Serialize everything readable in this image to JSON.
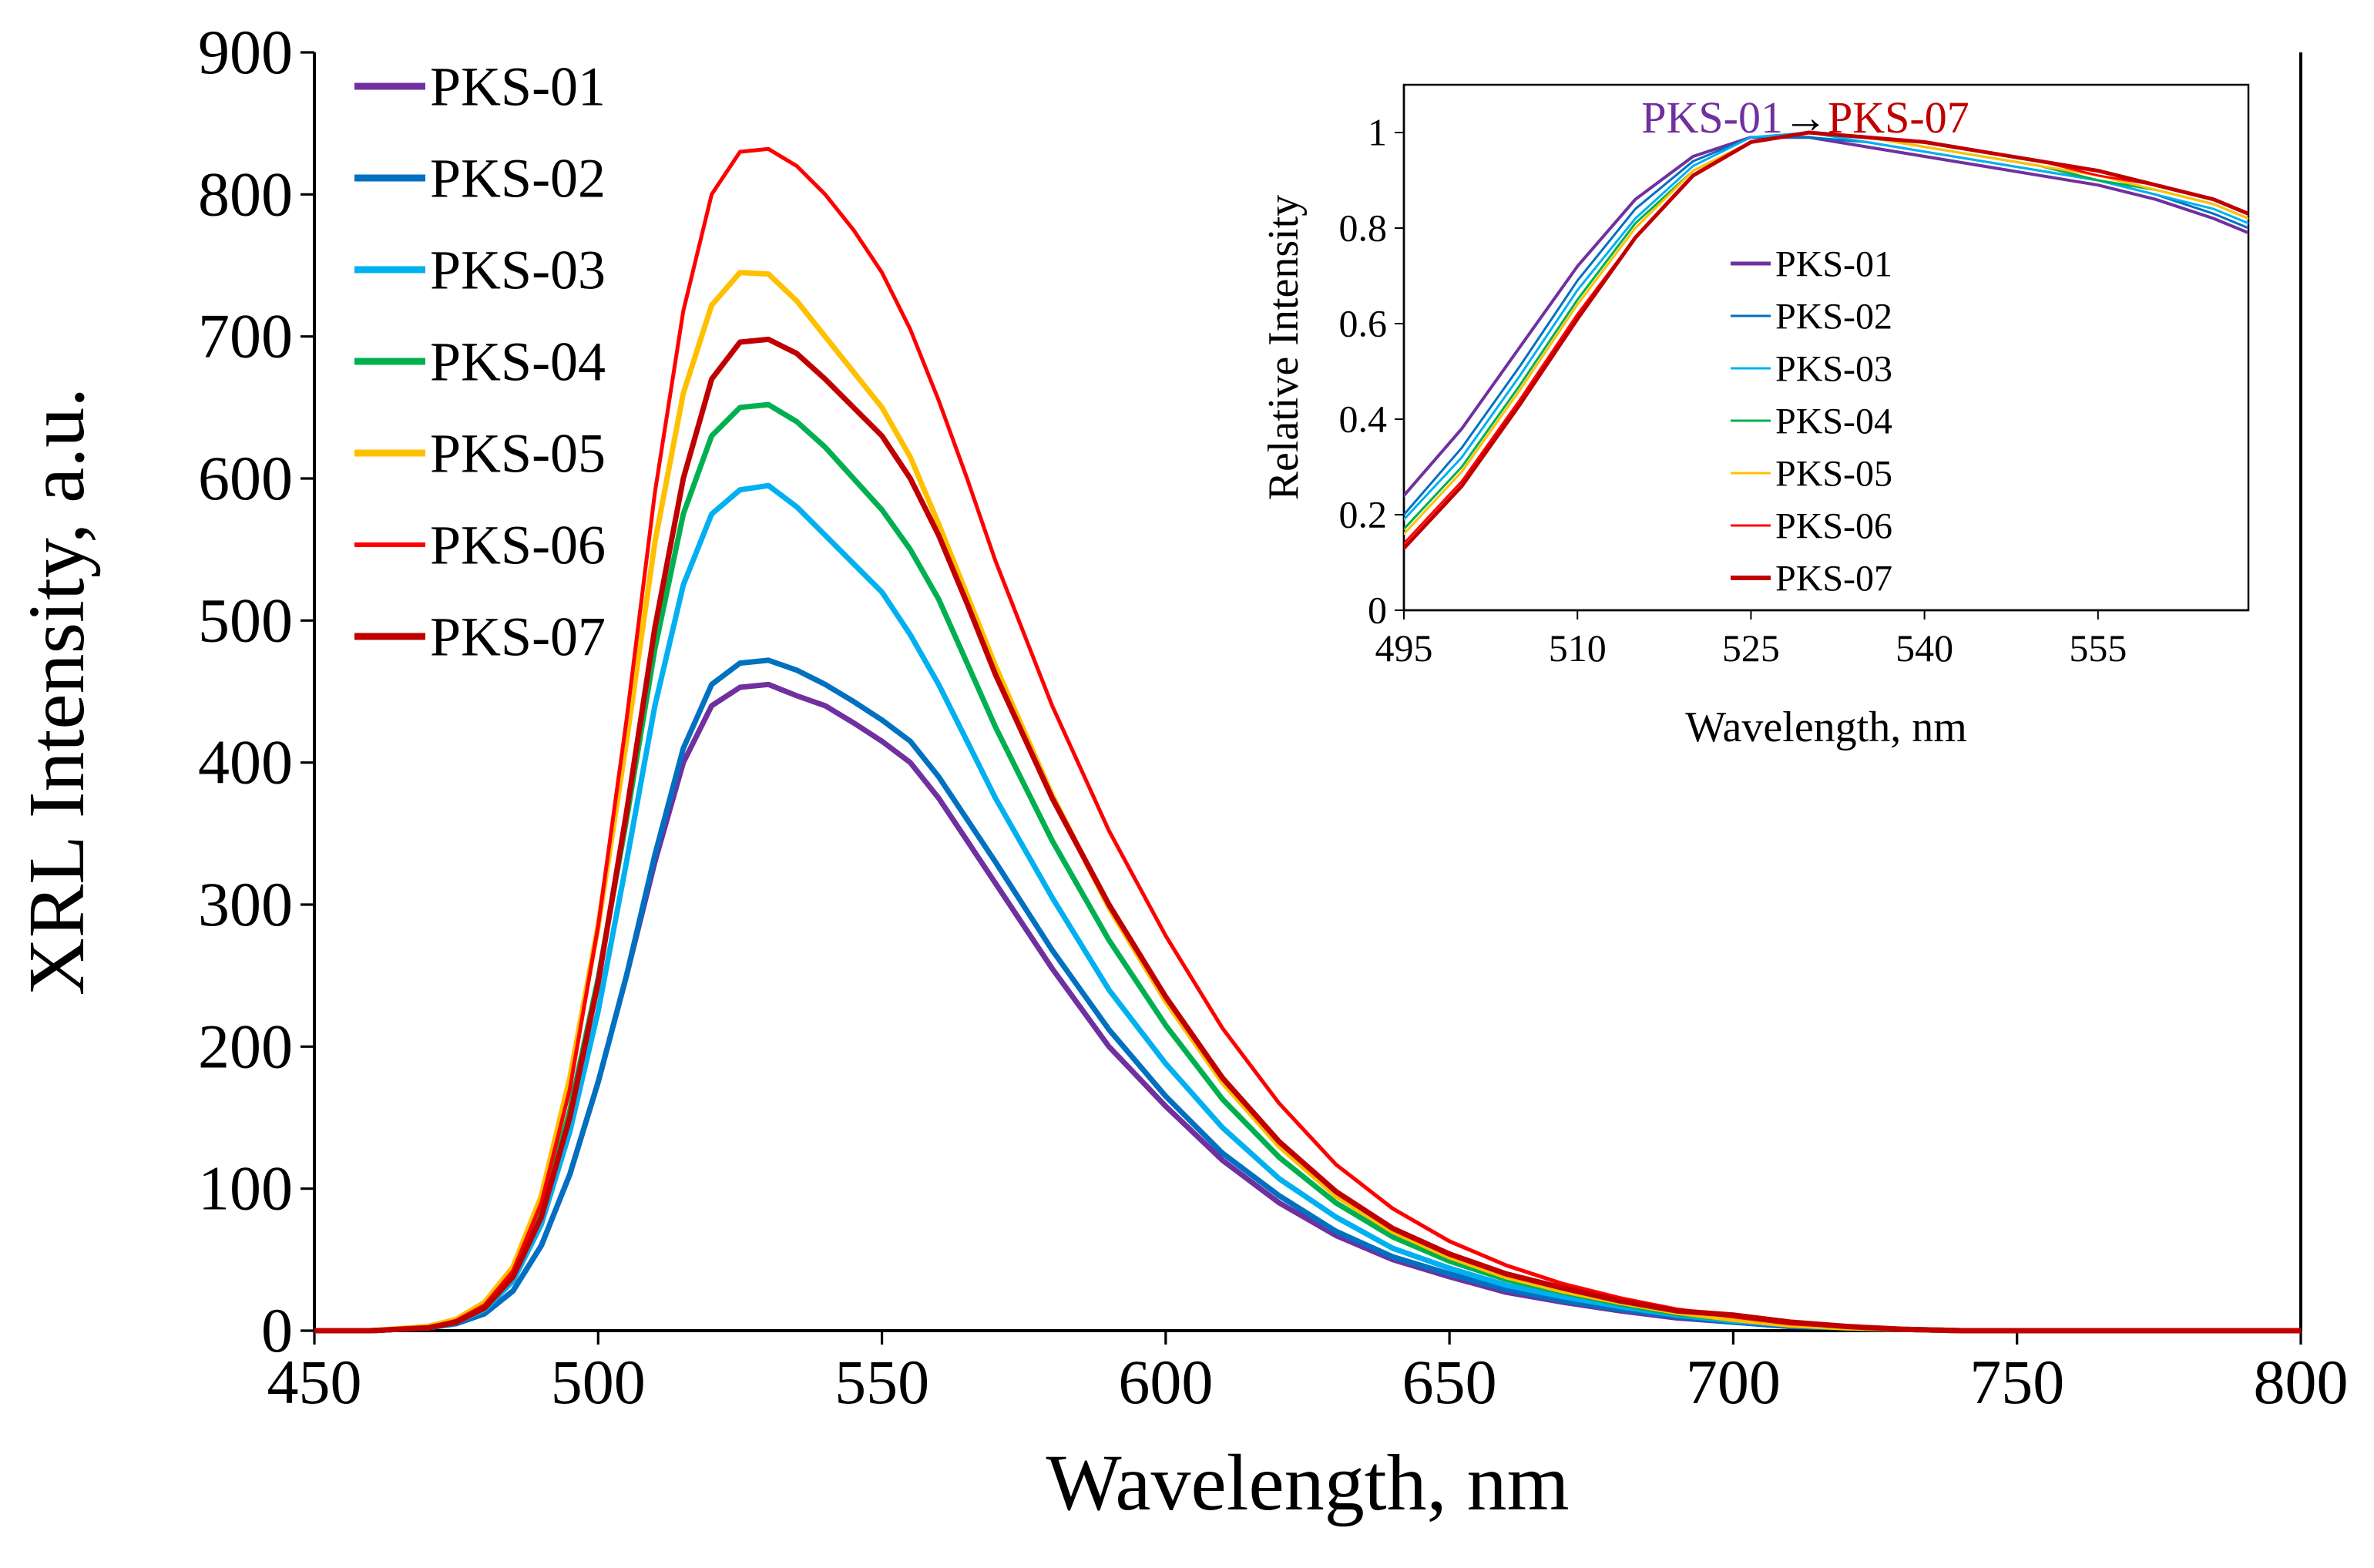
{
  "colors": {
    "PKS-01": "#7030A0",
    "PKS-02": "#0070C0",
    "PKS-03": "#00B0F0",
    "PKS-04": "#00B050",
    "PKS-05": "#FFC000",
    "PKS-06": "#FF0000",
    "PKS-07": "#C00000",
    "axis": "#000000",
    "background": "#FFFFFF"
  },
  "chart_data": [
    {
      "id": "main",
      "type": "line",
      "title": "",
      "xlabel": "Wavelength, nm",
      "ylabel": "XRL Intensity, a.u.",
      "xlim": [
        450,
        800
      ],
      "ylim": [
        0,
        900
      ],
      "xticks": [
        450,
        500,
        550,
        600,
        650,
        700,
        750,
        800
      ],
      "yticks": [
        0,
        100,
        200,
        300,
        400,
        500,
        600,
        700,
        800,
        900
      ],
      "grid": false,
      "legend_position": "top-left",
      "x": [
        450,
        460,
        470,
        475,
        480,
        485,
        490,
        495,
        500,
        505,
        510,
        515,
        520,
        525,
        530,
        535,
        540,
        545,
        550,
        555,
        560,
        565,
        570,
        580,
        590,
        600,
        610,
        620,
        630,
        640,
        650,
        660,
        670,
        680,
        690,
        700,
        710,
        720,
        730,
        740,
        750,
        760,
        780,
        800
      ],
      "series": [
        {
          "name": "PKS-01",
          "values": [
            0,
            0,
            2,
            5,
            12,
            28,
            60,
            110,
            175,
            250,
            330,
            400,
            440,
            453,
            455,
            447,
            440,
            428,
            415,
            400,
            375,
            345,
            315,
            255,
            200,
            158,
            120,
            90,
            67,
            50,
            38,
            27,
            20,
            14,
            9,
            6,
            3,
            2,
            1,
            0,
            0,
            0,
            0,
            0
          ]
        },
        {
          "name": "PKS-02",
          "values": [
            0,
            0,
            2,
            5,
            12,
            28,
            60,
            110,
            175,
            250,
            335,
            410,
            455,
            470,
            472,
            465,
            455,
            443,
            430,
            415,
            390,
            360,
            330,
            268,
            212,
            165,
            125,
            95,
            70,
            52,
            40,
            29,
            21,
            15,
            10,
            6,
            3,
            2,
            1,
            0,
            0,
            0,
            0,
            0
          ]
        },
        {
          "name": "PKS-03",
          "values": [
            0,
            0,
            2,
            6,
            15,
            35,
            75,
            140,
            225,
            330,
            440,
            525,
            575,
            592,
            595,
            580,
            560,
            540,
            520,
            490,
            455,
            415,
            375,
            305,
            240,
            188,
            143,
            107,
            80,
            58,
            44,
            32,
            24,
            17,
            11,
            7,
            4,
            2,
            1,
            0,
            0,
            0,
            0,
            0
          ]
        },
        {
          "name": "PKS-04",
          "values": [
            0,
            0,
            2,
            6,
            16,
            38,
            82,
            155,
            248,
            360,
            480,
            575,
            630,
            650,
            652,
            640,
            622,
            600,
            578,
            550,
            515,
            470,
            425,
            345,
            275,
            215,
            163,
            122,
            90,
            66,
            49,
            36,
            27,
            19,
            12,
            8,
            4,
            2,
            1,
            0,
            0,
            0,
            0,
            0
          ]
        },
        {
          "name": "PKS-05",
          "values": [
            0,
            0,
            3,
            8,
            20,
            45,
            95,
            178,
            285,
            415,
            555,
            660,
            722,
            745,
            744,
            725,
            700,
            675,
            650,
            615,
            568,
            518,
            468,
            377,
            298,
            232,
            175,
            130,
            95,
            70,
            52,
            38,
            28,
            20,
            13,
            8,
            4,
            2,
            1,
            0,
            0,
            0,
            0,
            0
          ]
        },
        {
          "name": "PKS-06",
          "values": [
            0,
            0,
            2,
            7,
            18,
            42,
            90,
            170,
            285,
            430,
            590,
            718,
            800,
            830,
            832,
            820,
            800,
            775,
            745,
            705,
            655,
            600,
            542,
            440,
            352,
            278,
            213,
            160,
            117,
            86,
            63,
            46,
            33,
            23,
            15,
            10,
            5,
            3,
            1,
            0,
            0,
            0,
            0,
            0
          ]
        },
        {
          "name": "PKS-07",
          "values": [
            0,
            0,
            2,
            6,
            16,
            38,
            80,
            150,
            245,
            365,
            495,
            600,
            670,
            696,
            698,
            688,
            670,
            650,
            630,
            600,
            560,
            512,
            462,
            375,
            300,
            235,
            178,
            133,
            98,
            72,
            54,
            40,
            30,
            21,
            14,
            11,
            6,
            3,
            1,
            0,
            0,
            0,
            0,
            0
          ]
        }
      ]
    },
    {
      "id": "inset",
      "type": "line",
      "title": "PKS-01→PKS-07",
      "title_parts": [
        "PKS-01",
        "→",
        "PKS-07"
      ],
      "xlabel": "Wavelength, nm",
      "ylabel": "Relative Intensity",
      "xlim": [
        495,
        568
      ],
      "ylim": [
        0,
        1.1
      ],
      "xticks": [
        495,
        510,
        525,
        540,
        555
      ],
      "yticks": [
        0,
        0.2,
        0.4,
        0.6,
        0.8,
        1
      ],
      "ytick_labels": [
        "0",
        "0.2",
        "0.4",
        "0.6",
        "0.8",
        "1"
      ],
      "grid": false,
      "legend_position": "center",
      "x": [
        495,
        500,
        505,
        510,
        515,
        520,
        525,
        530,
        535,
        540,
        545,
        550,
        555,
        560,
        565,
        568
      ],
      "series": [
        {
          "name": "PKS-01",
          "values": [
            0.24,
            0.38,
            0.55,
            0.72,
            0.86,
            0.95,
            0.99,
            0.99,
            0.97,
            0.95,
            0.93,
            0.91,
            0.89,
            0.86,
            0.82,
            0.79
          ]
        },
        {
          "name": "PKS-02",
          "values": [
            0.2,
            0.34,
            0.51,
            0.69,
            0.84,
            0.94,
            0.99,
            0.99,
            0.98,
            0.96,
            0.94,
            0.92,
            0.9,
            0.87,
            0.83,
            0.8
          ]
        },
        {
          "name": "PKS-03",
          "values": [
            0.19,
            0.32,
            0.49,
            0.67,
            0.82,
            0.93,
            0.99,
            1.0,
            0.98,
            0.96,
            0.94,
            0.92,
            0.9,
            0.87,
            0.84,
            0.81
          ]
        },
        {
          "name": "PKS-04",
          "values": [
            0.17,
            0.3,
            0.47,
            0.65,
            0.81,
            0.92,
            0.98,
            1.0,
            0.99,
            0.97,
            0.95,
            0.93,
            0.9,
            0.88,
            0.85,
            0.82
          ]
        },
        {
          "name": "PKS-05",
          "values": [
            0.16,
            0.29,
            0.46,
            0.64,
            0.8,
            0.92,
            0.98,
            1.0,
            0.99,
            0.97,
            0.95,
            0.93,
            0.91,
            0.88,
            0.85,
            0.82
          ]
        },
        {
          "name": "PKS-06",
          "values": [
            0.14,
            0.27,
            0.44,
            0.62,
            0.78,
            0.91,
            0.98,
            1.0,
            0.99,
            0.98,
            0.96,
            0.94,
            0.91,
            0.89,
            0.86,
            0.83
          ]
        },
        {
          "name": "PKS-07",
          "values": [
            0.13,
            0.26,
            0.43,
            0.61,
            0.78,
            0.91,
            0.98,
            1.0,
            0.99,
            0.98,
            0.96,
            0.94,
            0.92,
            0.89,
            0.86,
            0.83
          ]
        }
      ]
    }
  ]
}
